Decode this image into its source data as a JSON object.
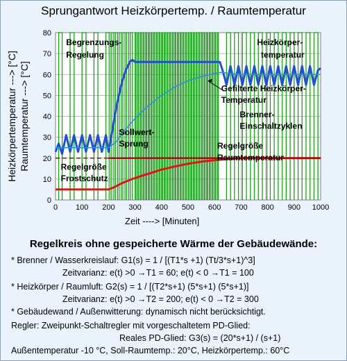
{
  "title": "Sprungantwort   Heizkörpertemp.  / Raumtemperatur",
  "chart_data": {
    "type": "line",
    "xlabel": "Zeit  ---->  [Minuten]",
    "ylabel_lines": [
      "Heizkörpertemperatur ---> [°C]",
      "Raumtemperatur ---> [°C]"
    ],
    "xlim": [
      0,
      1000
    ],
    "ylim": [
      0,
      80
    ],
    "xticks": [
      0,
      100,
      200,
      300,
      400,
      500,
      600,
      700,
      800,
      900,
      1000
    ],
    "yticks": [
      0,
      10,
      20,
      30,
      40,
      50,
      60,
      70,
      80
    ],
    "grid": true,
    "series": [
      {
        "name": "Heizkörpertemperatur",
        "color": "#1f50d0",
        "x": [
          0,
          12,
          25,
          40,
          55,
          70,
          85,
          100,
          115,
          130,
          145,
          160,
          175,
          190,
          200,
          210,
          230,
          250,
          265,
          280,
          290,
          300,
          320,
          360,
          400,
          450,
          500,
          550,
          600,
          620,
          630,
          645,
          660,
          675,
          690,
          705,
          720,
          735,
          750,
          765,
          780,
          795,
          810,
          825,
          840,
          855,
          870,
          885,
          900,
          915,
          930,
          945,
          960,
          975,
          990,
          1000
        ],
        "y": [
          23,
          27,
          22,
          31,
          23,
          31,
          23,
          31,
          23,
          31,
          23,
          31,
          23,
          31,
          23,
          30,
          45,
          56,
          62,
          66,
          67,
          66,
          66,
          66,
          66,
          66,
          66,
          66,
          66,
          66,
          62,
          55,
          64,
          55,
          64,
          55,
          64,
          55,
          64,
          55,
          64,
          55,
          64,
          55,
          64,
          55,
          64,
          55,
          64,
          55,
          64,
          55,
          64,
          55,
          62,
          63
        ]
      },
      {
        "name": "Gefilterte Heizkörper-Temperatur",
        "color": "#2a8fd8",
        "x": [
          0,
          50,
          100,
          150,
          200,
          230,
          260,
          300,
          350,
          400,
          450,
          500,
          550,
          600,
          630,
          650,
          700,
          750,
          800,
          850,
          900,
          950,
          1000
        ],
        "y": [
          25,
          25,
          25,
          25,
          25,
          28,
          33,
          39,
          45,
          50,
          54,
          57,
          59,
          60.5,
          61,
          60.5,
          60,
          60,
          60,
          60,
          60,
          60,
          60
        ]
      },
      {
        "name": "Regelgröße Raumtemperatur",
        "color": "#e01414",
        "x": [
          0,
          50,
          100,
          150,
          200,
          220,
          250,
          300,
          350,
          400,
          450,
          500,
          550,
          600,
          650,
          700,
          800,
          900,
          1000
        ],
        "y": [
          5,
          5,
          5,
          5,
          5,
          6,
          8,
          10.5,
          12.5,
          14.5,
          16,
          17.3,
          18.3,
          19,
          19.6,
          20,
          20,
          20,
          20
        ]
      },
      {
        "name": "Sollwert",
        "color": "#a80000",
        "x": [
          0,
          200,
          200,
          1000
        ],
        "y": [
          20,
          20,
          20,
          20
        ],
        "style": "dashed-left"
      }
    ],
    "burner_cycles": {
      "color": "#18a018",
      "on_intervals": [
        [
          12,
          25
        ],
        [
          55,
          70
        ],
        [
          100,
          115
        ],
        [
          145,
          160
        ],
        [
          190,
          205
        ],
        [
          212,
          220
        ],
        [
          226,
          234
        ],
        [
          240,
          248
        ],
        [
          254,
          262
        ],
        [
          268,
          276
        ],
        [
          282,
          290
        ],
        [
          300,
          304
        ],
        [
          310,
          314
        ],
        [
          320,
          324
        ],
        [
          330,
          334
        ],
        [
          340,
          344
        ],
        [
          350,
          354
        ],
        [
          360,
          364
        ],
        [
          370,
          374
        ],
        [
          380,
          384
        ],
        [
          390,
          394
        ],
        [
          400,
          404
        ],
        [
          410,
          414
        ],
        [
          420,
          424
        ],
        [
          430,
          434
        ],
        [
          440,
          444
        ],
        [
          450,
          454
        ],
        [
          460,
          464
        ],
        [
          470,
          474
        ],
        [
          480,
          484
        ],
        [
          490,
          494
        ],
        [
          500,
          504
        ],
        [
          510,
          514
        ],
        [
          520,
          524
        ],
        [
          530,
          534
        ],
        [
          540,
          544
        ],
        [
          550,
          554
        ],
        [
          560,
          564
        ],
        [
          570,
          574
        ],
        [
          580,
          584
        ],
        [
          590,
          594
        ],
        [
          600,
          604
        ],
        [
          610,
          614
        ],
        [
          645,
          660
        ],
        [
          675,
          690
        ],
        [
          705,
          720
        ],
        [
          735,
          750
        ],
        [
          765,
          780
        ],
        [
          795,
          810
        ],
        [
          825,
          840
        ],
        [
          855,
          870
        ],
        [
          885,
          900
        ],
        [
          915,
          930
        ],
        [
          945,
          960
        ],
        [
          975,
          990
        ]
      ],
      "level": 80
    },
    "annotations": [
      {
        "text": "Begrenzungs-",
        "x": 40,
        "y": 74
      },
      {
        "text": "Regelung",
        "x": 40,
        "y": 68
      },
      {
        "text": "Heizkörper-",
        "x": 760,
        "y": 74
      },
      {
        "text": "temperatur",
        "x": 775,
        "y": 68
      },
      {
        "text": "Gefilterte Heizkörper-",
        "x": 625,
        "y": 52
      },
      {
        "text": "Temperatur",
        "x": 625,
        "y": 46.5
      },
      {
        "text": "Brenner-",
        "x": 695,
        "y": 39.5
      },
      {
        "text": "Einschaltzyklen",
        "x": 695,
        "y": 34
      },
      {
        "text": "Sollwert-",
        "x": 240,
        "y": 31
      },
      {
        "text": "Sprung",
        "x": 240,
        "y": 25.5
      },
      {
        "text": "Regelgröße",
        "x": 610,
        "y": 24.5
      },
      {
        "text": "Raumtemperatur",
        "x": 610,
        "y": 19
      },
      {
        "text": "Regelgröße",
        "x": 20,
        "y": 14.5
      },
      {
        "text": "Frostschutz",
        "x": 20,
        "y": 9
      }
    ]
  },
  "heading": "Regelkreis ohne gespeicherte Wärme der Gebäudewände:",
  "lines": [
    "*  Brenner / Wasserkreislauf: G1(s) = 1 / [(T1*s +1) (Tt/3*s+1)^3]",
    "Zeitvarianz:   e(t) >0 →T1 = 60;  e(t) < 0 →T1 = 100",
    "*  Heizkörper / Raumluft:        G2(s) = 1 / [(T2*s+1) (5*s+1) (5*s+1)]",
    "Zeitvarianz:   e(t) >0 →T2 = 200;  e(t) < 0 →T2 = 300",
    "*  Gebäudewand / Außenwitterung: dynamisch nicht berücksichtigt.",
    "Regler:  Zweipunkt-Schaltregler mit vorgeschaltetem PD-Glied:",
    "Reales PD-Glied: G3(s) = (20*s+1) / (s+1)",
    "Außentemperatur -10 °C, Soll-Raumtemp.: 20°C, Heizkörpertemp.: 60°C"
  ]
}
